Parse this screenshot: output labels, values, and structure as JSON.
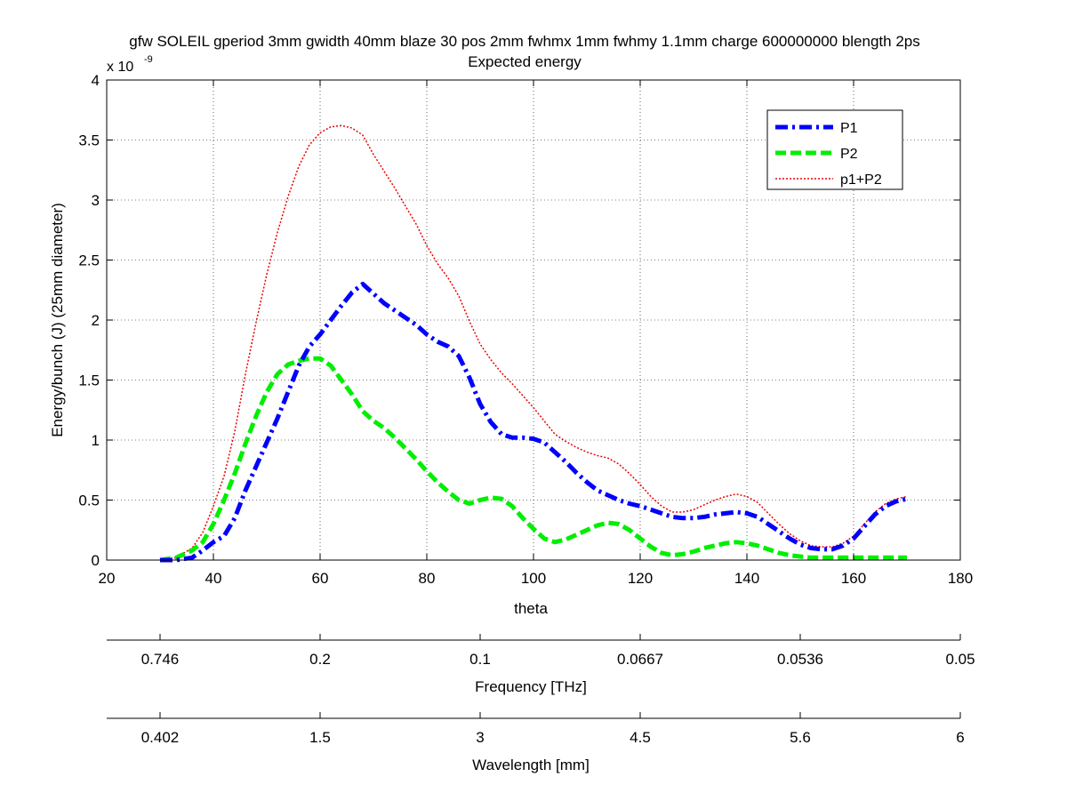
{
  "chart_data": {
    "type": "line",
    "title": "gfw SOLEIL gperiod 3mm gwidth 40mm blaze 30 pos 2mm fwhmx 1mm fwhmy 1.1mm charge 600000000 blength 2ps",
    "subtitle": "Expected energy",
    "xlabel": "theta",
    "ylabel": "Energy/bunch (J) (25mm diameter)",
    "y_scale_base": "x 10",
    "y_scale_exponent": "-9",
    "xlim": [
      20,
      180
    ],
    "ylim": [
      0,
      4
    ],
    "x_ticks": [
      20,
      40,
      60,
      80,
      100,
      120,
      140,
      160,
      180
    ],
    "y_ticks": [
      0,
      0.5,
      1,
      1.5,
      2,
      2.5,
      3,
      3.5,
      4
    ],
    "y_tick_labels": [
      "0",
      "0.5",
      "1",
      "1.5",
      "2",
      "2.5",
      "3",
      "3.5",
      "4"
    ],
    "grid": true,
    "legend_position": "top-right",
    "series": [
      {
        "name": "P1",
        "color": "#0000ff",
        "style": "dash-dot",
        "x": [
          30,
          33,
          36,
          38,
          40,
          42,
          44,
          46,
          48,
          50,
          52,
          54,
          56,
          58,
          60,
          62,
          64,
          66,
          68,
          70,
          72,
          74,
          76,
          78,
          80,
          82,
          84,
          86,
          88,
          90,
          92,
          94,
          96,
          98,
          100,
          102,
          104,
          106,
          108,
          110,
          112,
          114,
          116,
          118,
          120,
          122,
          124,
          126,
          128,
          130,
          132,
          134,
          136,
          138,
          140,
          142,
          144,
          146,
          148,
          150,
          152,
          154,
          156,
          158,
          160,
          162,
          164,
          166,
          168,
          170
        ],
        "values": [
          0,
          0,
          0.02,
          0.08,
          0.15,
          0.2,
          0.35,
          0.58,
          0.78,
          0.98,
          1.18,
          1.4,
          1.62,
          1.78,
          1.88,
          2.0,
          2.12,
          2.23,
          2.3,
          2.22,
          2.14,
          2.08,
          2.02,
          1.96,
          1.88,
          1.82,
          1.78,
          1.7,
          1.52,
          1.3,
          1.15,
          1.05,
          1.02,
          1.02,
          1.01,
          0.98,
          0.9,
          0.82,
          0.73,
          0.65,
          0.58,
          0.54,
          0.5,
          0.47,
          0.45,
          0.42,
          0.39,
          0.36,
          0.35,
          0.35,
          0.36,
          0.38,
          0.39,
          0.4,
          0.39,
          0.36,
          0.3,
          0.24,
          0.18,
          0.13,
          0.1,
          0.09,
          0.09,
          0.12,
          0.18,
          0.28,
          0.38,
          0.45,
          0.49,
          0.51
        ]
      },
      {
        "name": "P2",
        "color": "#00ee00",
        "style": "dashed",
        "x": [
          30,
          33,
          36,
          38,
          40,
          42,
          44,
          46,
          48,
          50,
          52,
          54,
          56,
          58,
          60,
          62,
          64,
          66,
          68,
          70,
          72,
          74,
          76,
          78,
          80,
          82,
          84,
          86,
          88,
          90,
          92,
          94,
          96,
          98,
          100,
          102,
          104,
          106,
          108,
          110,
          112,
          114,
          116,
          118,
          120,
          122,
          124,
          126,
          128,
          130,
          132,
          134,
          136,
          138,
          140,
          142,
          144,
          146,
          148,
          150,
          152,
          154,
          156,
          158,
          160,
          162,
          164,
          166,
          168,
          170
        ],
        "values": [
          0,
          0.02,
          0.08,
          0.15,
          0.3,
          0.5,
          0.72,
          0.97,
          1.2,
          1.4,
          1.55,
          1.63,
          1.66,
          1.68,
          1.68,
          1.62,
          1.5,
          1.38,
          1.24,
          1.16,
          1.1,
          1.02,
          0.93,
          0.84,
          0.74,
          0.65,
          0.57,
          0.5,
          0.47,
          0.5,
          0.52,
          0.51,
          0.45,
          0.35,
          0.26,
          0.18,
          0.15,
          0.17,
          0.21,
          0.25,
          0.29,
          0.31,
          0.3,
          0.25,
          0.18,
          0.11,
          0.06,
          0.04,
          0.05,
          0.07,
          0.1,
          0.12,
          0.14,
          0.15,
          0.14,
          0.12,
          0.09,
          0.06,
          0.04,
          0.03,
          0.02,
          0.02,
          0.02,
          0.02,
          0.02,
          0.02,
          0.02,
          0.02,
          0.02,
          0.02
        ]
      },
      {
        "name": "p1+P2",
        "color": "#ee0000",
        "style": "dotted",
        "x": [
          30,
          33,
          36,
          38,
          40,
          42,
          44,
          46,
          48,
          50,
          52,
          54,
          56,
          58,
          60,
          62,
          64,
          66,
          68,
          70,
          72,
          74,
          76,
          78,
          80,
          82,
          84,
          86,
          88,
          90,
          92,
          94,
          96,
          98,
          100,
          102,
          104,
          106,
          108,
          110,
          112,
          114,
          116,
          118,
          120,
          122,
          124,
          126,
          128,
          130,
          132,
          134,
          136,
          138,
          140,
          142,
          144,
          146,
          148,
          150,
          152,
          154,
          156,
          158,
          160,
          162,
          164,
          166,
          168,
          170
        ],
        "values": [
          0,
          0.02,
          0.1,
          0.23,
          0.45,
          0.7,
          1.07,
          1.55,
          1.98,
          2.38,
          2.73,
          3.03,
          3.28,
          3.46,
          3.56,
          3.61,
          3.62,
          3.6,
          3.54,
          3.38,
          3.24,
          3.1,
          2.95,
          2.8,
          2.62,
          2.47,
          2.35,
          2.2,
          1.99,
          1.8,
          1.67,
          1.56,
          1.47,
          1.37,
          1.27,
          1.16,
          1.05,
          0.99,
          0.94,
          0.9,
          0.87,
          0.85,
          0.8,
          0.72,
          0.63,
          0.53,
          0.45,
          0.4,
          0.4,
          0.42,
          0.46,
          0.5,
          0.53,
          0.55,
          0.53,
          0.48,
          0.39,
          0.3,
          0.22,
          0.16,
          0.12,
          0.11,
          0.11,
          0.14,
          0.2,
          0.3,
          0.4,
          0.47,
          0.51,
          0.53
        ]
      }
    ],
    "secondary_axes": [
      {
        "label": "Frequency [THz]",
        "tick_theta": [
          30,
          60,
          90,
          120,
          150,
          180
        ],
        "tick_labels": [
          "0.746",
          "0.2",
          "0.1",
          "0.0667",
          "0.0536",
          "0.05"
        ]
      },
      {
        "label": "Wavelength [mm]",
        "tick_theta": [
          30,
          60,
          90,
          120,
          150,
          180
        ],
        "tick_labels": [
          "0.402",
          "1.5",
          "3",
          "4.5",
          "5.6",
          "6"
        ]
      }
    ]
  }
}
